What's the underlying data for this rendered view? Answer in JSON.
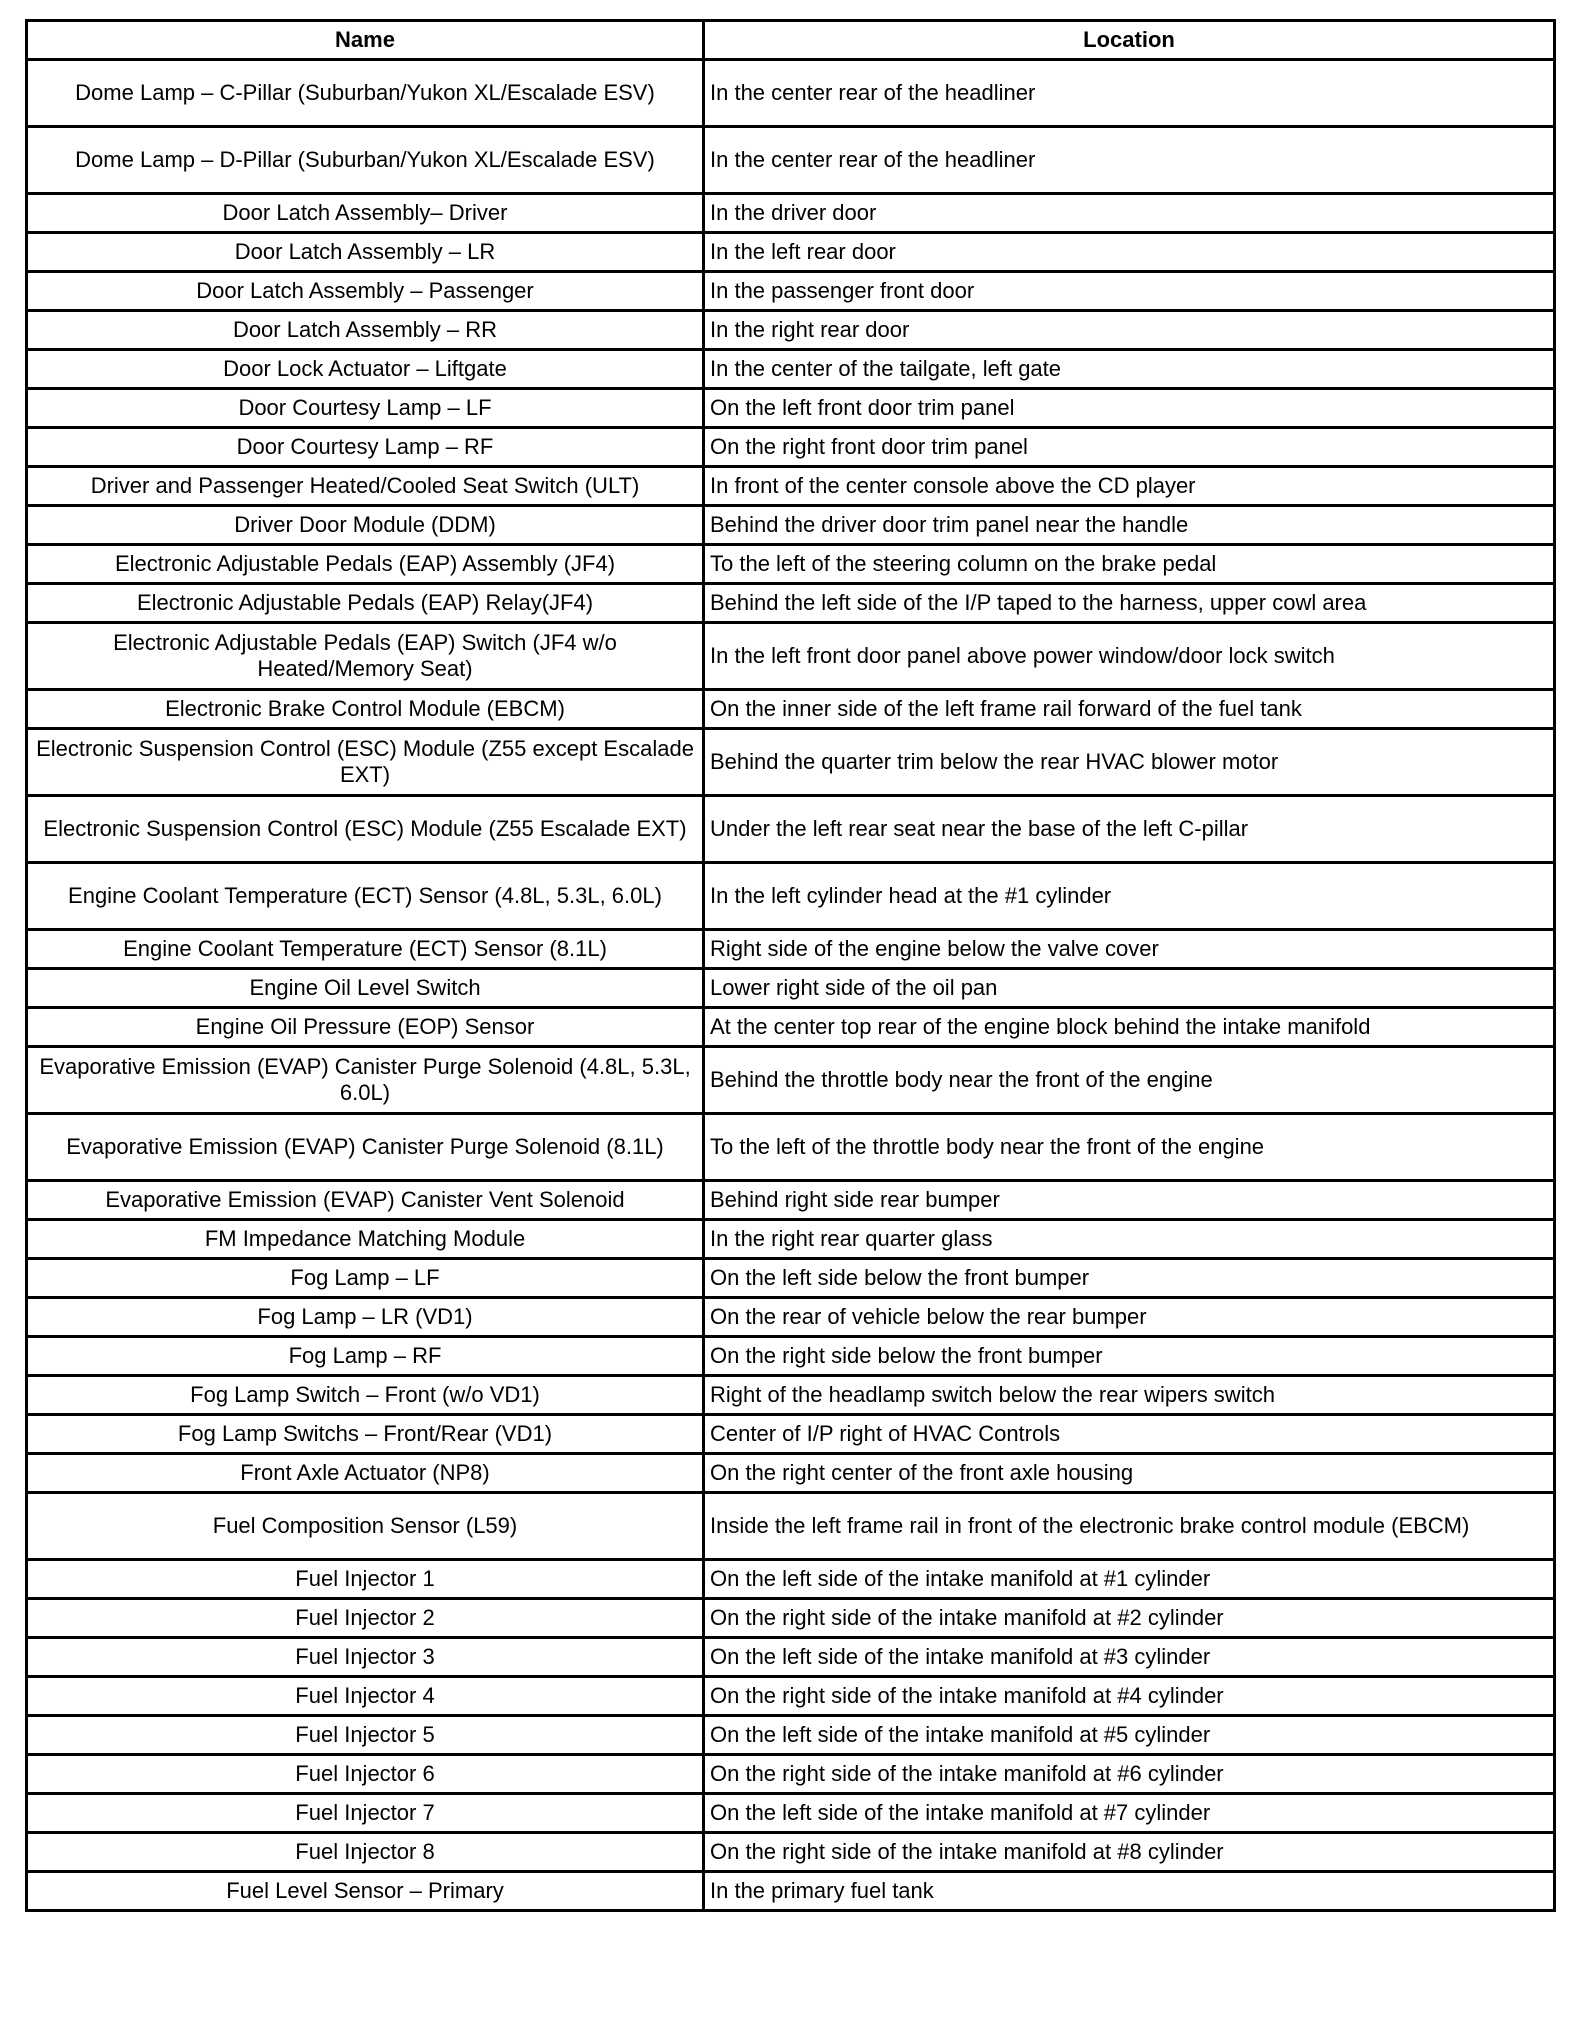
{
  "table": {
    "headers": {
      "name": "Name",
      "location": "Location"
    },
    "rows": [
      {
        "name": "Dome Lamp – C-Pillar (Suburban/Yukon XL/Escalade ESV)",
        "location": "In the center rear of the headliner",
        "double": true
      },
      {
        "name": "Dome Lamp – D-Pillar (Suburban/Yukon XL/Escalade ESV)",
        "location": "In the center rear of the headliner",
        "double": true
      },
      {
        "name": "Door Latch Assembly– Driver",
        "location": "In the driver door"
      },
      {
        "name": "Door Latch Assembly – LR",
        "location": "In the left rear door"
      },
      {
        "name": "Door Latch Assembly – Passenger",
        "location": "In the passenger front door"
      },
      {
        "name": "Door Latch Assembly – RR",
        "location": "In the right rear door"
      },
      {
        "name": "Door Lock Actuator – Liftgate",
        "location": "In the center of the tailgate, left gate"
      },
      {
        "name": "Door Courtesy Lamp – LF",
        "location": "On the left front door trim panel"
      },
      {
        "name": "Door Courtesy Lamp – RF",
        "location": "On the right front door trim panel"
      },
      {
        "name": "Driver and Passenger Heated/Cooled Seat Switch (ULT)",
        "location": "In front of the center console above the CD player"
      },
      {
        "name": "Driver Door Module (DDM)",
        "location": "Behind the driver door trim panel near the handle"
      },
      {
        "name": "Electronic Adjustable Pedals (EAP) Assembly (JF4)",
        "location": "To the left of the steering column on the brake pedal"
      },
      {
        "name": "Electronic Adjustable Pedals (EAP) Relay(JF4)",
        "location": "Behind the left side of the I/P taped to the harness, upper cowl area"
      },
      {
        "name": "Electronic Adjustable Pedals (EAP) Switch (JF4 w/o Heated/Memory Seat)",
        "location": "In the left front door panel above power window/door lock switch",
        "double": true
      },
      {
        "name": "Electronic Brake Control Module (EBCM)",
        "location": "On the inner side of the left frame rail forward of the fuel tank"
      },
      {
        "name": "Electronic Suspension Control (ESC) Module (Z55 except Escalade EXT)",
        "location": "Behind the quarter trim below the rear HVAC blower motor",
        "double": true
      },
      {
        "name": "Electronic Suspension Control (ESC) Module (Z55 Escalade EXT)",
        "location": "Under the left rear seat near the base of the left C-pillar",
        "double": true
      },
      {
        "name": "Engine Coolant Temperature (ECT) Sensor (4.8L, 5.3L, 6.0L)",
        "location": "In the left cylinder head at the #1 cylinder",
        "double": true
      },
      {
        "name": "Engine Coolant Temperature (ECT) Sensor (8.1L)",
        "location": "Right side of the engine below the valve cover"
      },
      {
        "name": "Engine Oil Level Switch",
        "location": "Lower right side of the oil pan"
      },
      {
        "name": "Engine Oil Pressure (EOP) Sensor",
        "location": "At the center top rear of the engine block behind the intake manifold"
      },
      {
        "name": "Evaporative Emission (EVAP) Canister Purge Solenoid (4.8L, 5.3L, 6.0L)",
        "location": "Behind the throttle body near the front of the engine",
        "double": true
      },
      {
        "name": "Evaporative Emission (EVAP) Canister Purge Solenoid (8.1L)",
        "location": "To the left of the throttle body near the front of the engine",
        "double": true
      },
      {
        "name": "Evaporative Emission (EVAP) Canister Vent Solenoid",
        "location": "Behind right side rear bumper"
      },
      {
        "name": "FM Impedance Matching Module",
        "location": "In the right rear quarter glass"
      },
      {
        "name": "Fog Lamp – LF",
        "location": "On the left side below the front bumper"
      },
      {
        "name": "Fog Lamp – LR (VD1)",
        "location": "On the rear of vehicle below the rear bumper"
      },
      {
        "name": "Fog Lamp – RF",
        "location": "On the right side below the front bumper"
      },
      {
        "name": "Fog Lamp Switch – Front (w/o VD1)",
        "location": "Right of the headlamp switch below the rear wipers switch"
      },
      {
        "name": "Fog Lamp Switchs – Front/Rear (VD1)",
        "location": "Center of I/P right of HVAC Controls"
      },
      {
        "name": "Front Axle Actuator (NP8)",
        "location": "On the right center of the front axle housing"
      },
      {
        "name": "Fuel Composition Sensor (L59)",
        "location": "Inside the left frame rail in front of the electronic brake control module (EBCM)",
        "double": true
      },
      {
        "name": "Fuel Injector 1",
        "location": "On the left side of the intake manifold at #1 cylinder"
      },
      {
        "name": "Fuel Injector 2",
        "location": "On the right side of the intake manifold at #2 cylinder"
      },
      {
        "name": "Fuel Injector 3",
        "location": "On the left side of the intake manifold at #3 cylinder"
      },
      {
        "name": "Fuel Injector 4",
        "location": "On the right side of the intake manifold at #4 cylinder"
      },
      {
        "name": "Fuel Injector 5",
        "location": "On the left side of the intake manifold at #5 cylinder"
      },
      {
        "name": "Fuel Injector 6",
        "location": "On the right side of the intake manifold at #6 cylinder"
      },
      {
        "name": "Fuel Injector 7",
        "location": "On the left side of the intake manifold at #7 cylinder"
      },
      {
        "name": "Fuel Injector 8",
        "location": "On the right side of the intake manifold at #8 cylinder"
      },
      {
        "name": "Fuel Level Sensor – Primary",
        "location": "In the primary fuel tank"
      }
    ]
  }
}
